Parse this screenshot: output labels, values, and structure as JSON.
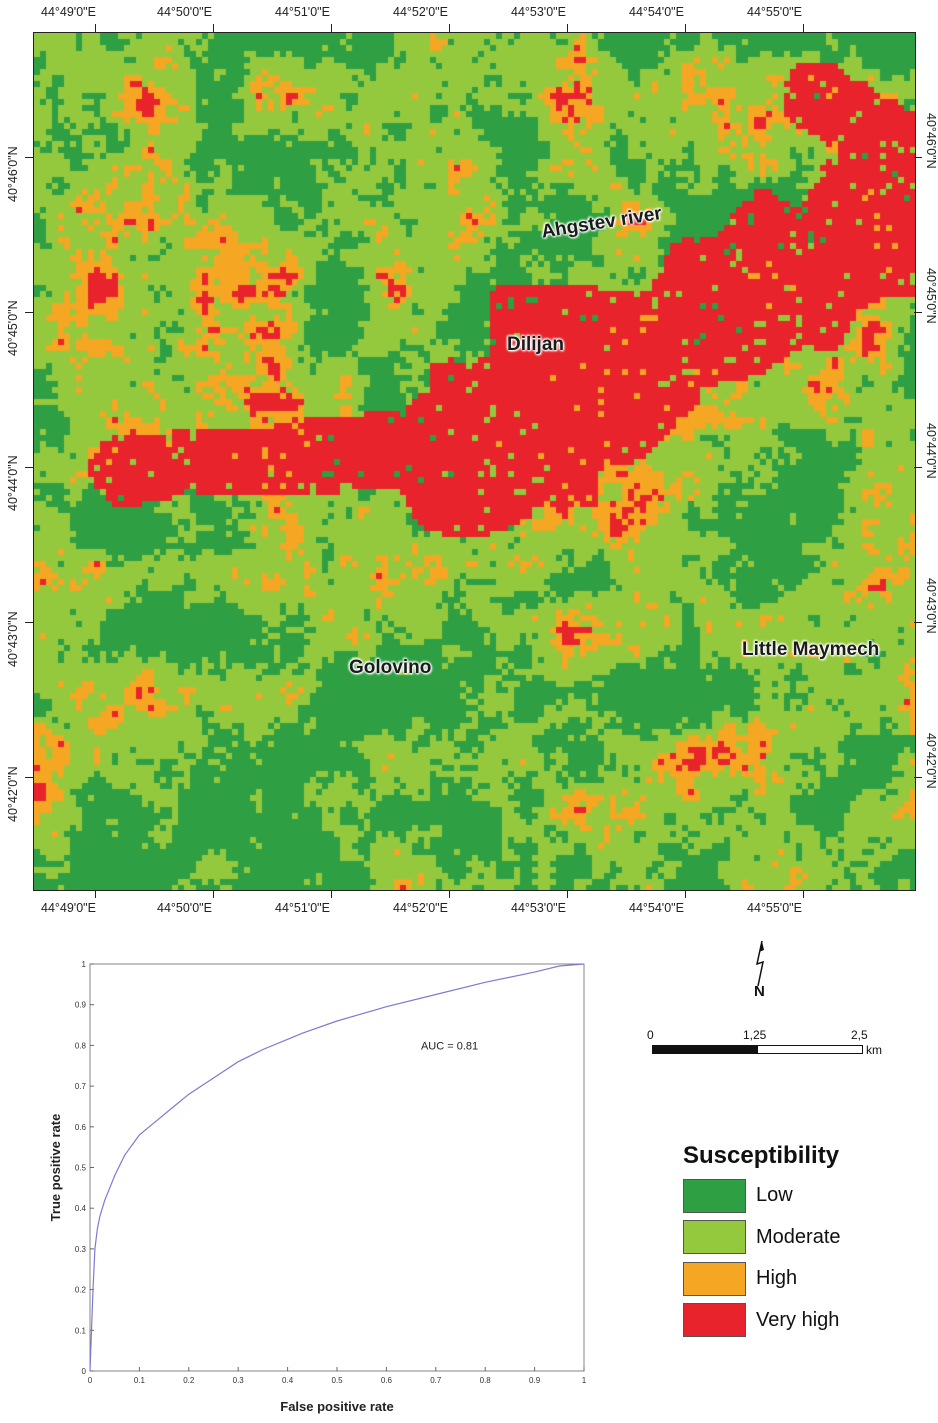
{
  "map": {
    "top_longitudes": [
      "44°49'0\"E",
      "44°50'0\"E",
      "44°51'0\"E",
      "44°52'0\"E",
      "44°53'0\"E",
      "44°54'0\"E",
      "44°55'0\"E"
    ],
    "bottom_longitudes": [
      "44°49'0\"E",
      "44°50'0\"E",
      "44°51'0\"E",
      "44°52'0\"E",
      "44°53'0\"E",
      "44°54'0\"E",
      "44°55'0\"E"
    ],
    "left_latitudes": [
      "40°46'0\"N",
      "40°45'0\"N",
      "40°44'0\"N",
      "40°43'0\"N",
      "40°42'0\"N"
    ],
    "right_latitudes": [
      "40°46'0\"N",
      "40°45'0\"N",
      "40°44'0\"N",
      "40°43'0\"N",
      "40°42'0\"N"
    ],
    "places": {
      "ahgstev": "Ahgstev river",
      "dilijan": "Dilijan",
      "golovino": "Golovino",
      "little_maymech": "Little Maymech"
    }
  },
  "scale_bar": {
    "ticks": [
      "0",
      "1,25",
      "2,5"
    ],
    "unit": "km"
  },
  "north_arrow": {
    "label": "N"
  },
  "legend": {
    "title": "Susceptibility",
    "items": [
      {
        "label": "Low",
        "color": "#2ea043"
      },
      {
        "label": "Moderate",
        "color": "#94c83d"
      },
      {
        "label": "High",
        "color": "#f5a623"
      },
      {
        "label": "Very high",
        "color": "#e8232b"
      }
    ]
  },
  "chart_data": {
    "type": "line",
    "xlabel": "False positive rate",
    "ylabel": "True positive rate",
    "xlim": [
      0,
      1
    ],
    "ylim": [
      0,
      1
    ],
    "x_ticks": [
      "0",
      "0.1",
      "0.2",
      "0.3",
      "0.4",
      "0.5",
      "0.6",
      "0.7",
      "0.8",
      "0.9",
      "1"
    ],
    "y_ticks": [
      "0",
      "0.1",
      "0.2",
      "0.3",
      "0.4",
      "0.5",
      "0.6",
      "0.7",
      "0.8",
      "0.9",
      "1"
    ],
    "annotation": "AUC = 0.81",
    "series": [
      {
        "color": "#7b7bd4",
        "x": [
          0,
          0.003,
          0.006,
          0.01,
          0.015,
          0.02,
          0.03,
          0.04,
          0.05,
          0.07,
          0.1,
          0.13,
          0.17,
          0.2,
          0.25,
          0.3,
          0.35,
          0.4,
          0.43,
          0.5,
          0.6,
          0.7,
          0.8,
          0.9,
          0.95,
          1
        ],
        "y": [
          0,
          0.1,
          0.2,
          0.3,
          0.35,
          0.38,
          0.42,
          0.45,
          0.48,
          0.53,
          0.58,
          0.61,
          0.65,
          0.68,
          0.72,
          0.76,
          0.79,
          0.815,
          0.83,
          0.86,
          0.895,
          0.925,
          0.955,
          0.98,
          0.995,
          1
        ]
      }
    ]
  }
}
